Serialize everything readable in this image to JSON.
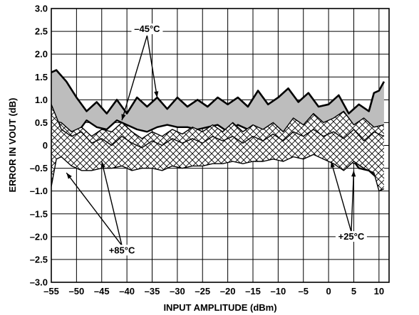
{
  "chart_data": {
    "type": "area",
    "xlabel": "INPUT AMPLITUDE (dBm)",
    "ylabel": "ERROR IN VOUT (dB)",
    "xlim": [
      -55,
      12
    ],
    "ylim": [
      -3.0,
      3.0
    ],
    "x_ticks": [
      -55,
      -50,
      -45,
      -40,
      -35,
      -30,
      -25,
      -20,
      -15,
      -10,
      -5,
      0,
      5,
      10
    ],
    "x_tick_labels": [
      "–55",
      "–50",
      "–45",
      "–40",
      "–35",
      "–30",
      "–25",
      "–20",
      "–15",
      "–10",
      "–5",
      "0",
      "5",
      "10"
    ],
    "y_ticks": [
      3.0,
      2.5,
      2.0,
      1.5,
      1.0,
      0.5,
      0,
      -0.5,
      -1.0,
      -1.5,
      -2.0,
      -2.5,
      -3.0
    ],
    "y_tick_labels": [
      "3.0",
      "2.5",
      "2.0",
      "1.5",
      "1.0",
      "0.5",
      "0",
      "–0.5",
      "–1.0",
      "–1.5",
      "–2.0",
      "–2.5",
      "–3.0"
    ],
    "grid": true,
    "series": [
      {
        "name": "–45°C",
        "fill": "#bdbdbd",
        "pattern": "solid",
        "upper": [
          [
            -55,
            1.6
          ],
          [
            -54,
            1.65
          ],
          [
            -52,
            1.4
          ],
          [
            -50,
            1.05
          ],
          [
            -48,
            0.75
          ],
          [
            -46,
            0.95
          ],
          [
            -44,
            0.7
          ],
          [
            -42,
            1.0
          ],
          [
            -40,
            0.7
          ],
          [
            -38,
            1.05
          ],
          [
            -36,
            0.85
          ],
          [
            -34,
            1.05
          ],
          [
            -32,
            0.8
          ],
          [
            -30,
            1.05
          ],
          [
            -28,
            0.85
          ],
          [
            -26,
            1.0
          ],
          [
            -24,
            0.85
          ],
          [
            -22,
            1.05
          ],
          [
            -20,
            0.9
          ],
          [
            -18,
            1.05
          ],
          [
            -16,
            0.85
          ],
          [
            -14,
            1.2
          ],
          [
            -12,
            0.9
          ],
          [
            -10,
            1.05
          ],
          [
            -8,
            1.25
          ],
          [
            -6,
            0.95
          ],
          [
            -4,
            1.15
          ],
          [
            -2,
            0.85
          ],
          [
            0,
            0.9
          ],
          [
            2,
            1.1
          ],
          [
            4,
            0.7
          ],
          [
            6,
            0.9
          ],
          [
            8,
            0.75
          ],
          [
            9,
            1.15
          ],
          [
            10,
            1.2
          ],
          [
            11,
            1.4
          ]
        ],
        "lower": [
          [
            -55,
            0.5
          ],
          [
            -52,
            0.35
          ],
          [
            -50,
            0.25
          ],
          [
            -48,
            0.55
          ],
          [
            -46,
            0.4
          ],
          [
            -44,
            0.35
          ],
          [
            -42,
            0.55
          ],
          [
            -40,
            0.45
          ],
          [
            -38,
            0.35
          ],
          [
            -36,
            0.3
          ],
          [
            -34,
            0.4
          ],
          [
            -32,
            0.45
          ],
          [
            -30,
            0.4
          ],
          [
            -28,
            0.4
          ],
          [
            -26,
            0.35
          ],
          [
            -24,
            0.4
          ],
          [
            -22,
            0.45
          ],
          [
            -20,
            0.3
          ],
          [
            -18,
            0.45
          ],
          [
            -16,
            0.35
          ],
          [
            -14,
            0.3
          ],
          [
            -12,
            0.25
          ],
          [
            -10,
            0.2
          ],
          [
            -8,
            0.25
          ],
          [
            -6,
            0.15
          ],
          [
            -4,
            0.05
          ],
          [
            -2,
            0.15
          ],
          [
            0,
            -0.1
          ],
          [
            2,
            -0.35
          ],
          [
            4,
            -0.2
          ],
          [
            6,
            -0.5
          ],
          [
            8,
            -0.55
          ],
          [
            10,
            -0.75
          ],
          [
            11,
            -0.7
          ]
        ]
      },
      {
        "name": "+25°C",
        "fill": "#ffffff",
        "pattern": "crosshatch",
        "upper": [
          [
            -55,
            0.55
          ],
          [
            -53,
            0.5
          ],
          [
            -51,
            0.3
          ],
          [
            -49,
            0.4
          ],
          [
            -47,
            0.2
          ],
          [
            -45,
            0.35
          ],
          [
            -43,
            0.3
          ],
          [
            -41,
            0.5
          ],
          [
            -39,
            0.3
          ],
          [
            -37,
            0.15
          ],
          [
            -35,
            0.3
          ],
          [
            -33,
            0.2
          ],
          [
            -31,
            0.35
          ],
          [
            -29,
            0.25
          ],
          [
            -27,
            0.4
          ],
          [
            -25,
            0.3
          ],
          [
            -23,
            0.45
          ],
          [
            -21,
            0.3
          ],
          [
            -19,
            0.5
          ],
          [
            -17,
            0.3
          ],
          [
            -15,
            0.45
          ],
          [
            -13,
            0.35
          ],
          [
            -11,
            0.5
          ],
          [
            -9,
            0.3
          ],
          [
            -7,
            0.6
          ],
          [
            -5,
            0.45
          ],
          [
            -3,
            0.7
          ],
          [
            -1,
            0.5
          ],
          [
            1,
            0.6
          ],
          [
            3,
            0.75
          ],
          [
            5,
            0.45
          ],
          [
            7,
            0.6
          ],
          [
            9,
            0.4
          ],
          [
            11,
            0.45
          ]
        ],
        "lower": [
          [
            -55,
            0.1
          ],
          [
            -53,
            -0.05
          ],
          [
            -51,
            -0.15
          ],
          [
            -49,
            0.0
          ],
          [
            -47,
            -0.2
          ],
          [
            -45,
            -0.1
          ],
          [
            -43,
            -0.25
          ],
          [
            -41,
            -0.1
          ],
          [
            -39,
            -0.2
          ],
          [
            -37,
            -0.3
          ],
          [
            -35,
            -0.15
          ],
          [
            -33,
            -0.3
          ],
          [
            -31,
            -0.2
          ],
          [
            -29,
            -0.35
          ],
          [
            -27,
            -0.25
          ],
          [
            -25,
            -0.3
          ],
          [
            -23,
            -0.15
          ],
          [
            -21,
            -0.3
          ],
          [
            -19,
            -0.2
          ],
          [
            -17,
            -0.35
          ],
          [
            -15,
            -0.2
          ],
          [
            -13,
            -0.3
          ],
          [
            -11,
            -0.15
          ],
          [
            -9,
            -0.25
          ],
          [
            -7,
            -0.1
          ],
          [
            -5,
            -0.2
          ],
          [
            -3,
            -0.05
          ],
          [
            -1,
            -0.2
          ],
          [
            1,
            -0.35
          ],
          [
            3,
            -0.2
          ],
          [
            5,
            -0.4
          ],
          [
            7,
            -0.3
          ],
          [
            9,
            -0.5
          ],
          [
            11,
            -0.4
          ]
        ]
      },
      {
        "name": "+85°C",
        "fill": "#ffffff",
        "pattern": "crosshatch",
        "upper": [
          [
            -55,
            0.9
          ],
          [
            -53,
            0.35
          ],
          [
            -51,
            0.2
          ],
          [
            -49,
            0.3
          ],
          [
            -47,
            0.05
          ],
          [
            -45,
            0.15
          ],
          [
            -43,
            0.0
          ],
          [
            -41,
            0.2
          ],
          [
            -39,
            0.05
          ],
          [
            -37,
            -0.05
          ],
          [
            -35,
            0.1
          ],
          [
            -33,
            0.0
          ],
          [
            -31,
            0.15
          ],
          [
            -29,
            0.05
          ],
          [
            -27,
            0.15
          ],
          [
            -25,
            0.05
          ],
          [
            -23,
            0.2
          ],
          [
            -21,
            0.1
          ],
          [
            -19,
            0.2
          ],
          [
            -17,
            0.05
          ],
          [
            -15,
            0.2
          ],
          [
            -13,
            0.1
          ],
          [
            -11,
            0.25
          ],
          [
            -9,
            0.1
          ],
          [
            -7,
            0.3
          ],
          [
            -5,
            0.2
          ],
          [
            -3,
            0.35
          ],
          [
            -1,
            0.2
          ],
          [
            1,
            0.3
          ],
          [
            3,
            0.15
          ],
          [
            5,
            0.35
          ],
          [
            7,
            0.1
          ],
          [
            9,
            0.3
          ],
          [
            11,
            0.2
          ]
        ],
        "lower": [
          [
            -55,
            -0.9
          ],
          [
            -54,
            -0.3
          ],
          [
            -53,
            -0.25
          ],
          [
            -51,
            -0.45
          ],
          [
            -49,
            -0.55
          ],
          [
            -47,
            -0.55
          ],
          [
            -45,
            -0.5
          ],
          [
            -43,
            -0.5
          ],
          [
            -41,
            -0.45
          ],
          [
            -39,
            -0.55
          ],
          [
            -37,
            -0.5
          ],
          [
            -35,
            -0.5
          ],
          [
            -33,
            -0.55
          ],
          [
            -31,
            -0.45
          ],
          [
            -29,
            -0.5
          ],
          [
            -27,
            -0.45
          ],
          [
            -25,
            -0.45
          ],
          [
            -23,
            -0.4
          ],
          [
            -21,
            -0.4
          ],
          [
            -19,
            -0.35
          ],
          [
            -17,
            -0.4
          ],
          [
            -15,
            -0.35
          ],
          [
            -13,
            -0.35
          ],
          [
            -11,
            -0.3
          ],
          [
            -9,
            -0.35
          ],
          [
            -7,
            -0.25
          ],
          [
            -5,
            -0.3
          ],
          [
            -3,
            -0.2
          ],
          [
            -1,
            -0.3
          ],
          [
            1,
            -0.4
          ],
          [
            3,
            -0.55
          ],
          [
            5,
            -0.35
          ],
          [
            7,
            -0.5
          ],
          [
            9,
            -0.6
          ],
          [
            10,
            -1.0
          ],
          [
            11,
            -0.95
          ]
        ]
      }
    ],
    "annotations": [
      {
        "text": "–45°C",
        "x": -36,
        "y": 2.5,
        "targets": [
          [
            -34,
            1.05
          ],
          [
            -41,
            0.55
          ]
        ]
      },
      {
        "text": "+85°C",
        "x": -41,
        "y": -2.35,
        "targets": [
          [
            -52,
            -0.6
          ],
          [
            -45,
            -0.35
          ]
        ]
      },
      {
        "text": "+25°C",
        "x": 4.5,
        "y": -2.05,
        "targets": [
          [
            0.5,
            -0.35
          ],
          [
            5,
            -0.55
          ]
        ]
      }
    ]
  }
}
